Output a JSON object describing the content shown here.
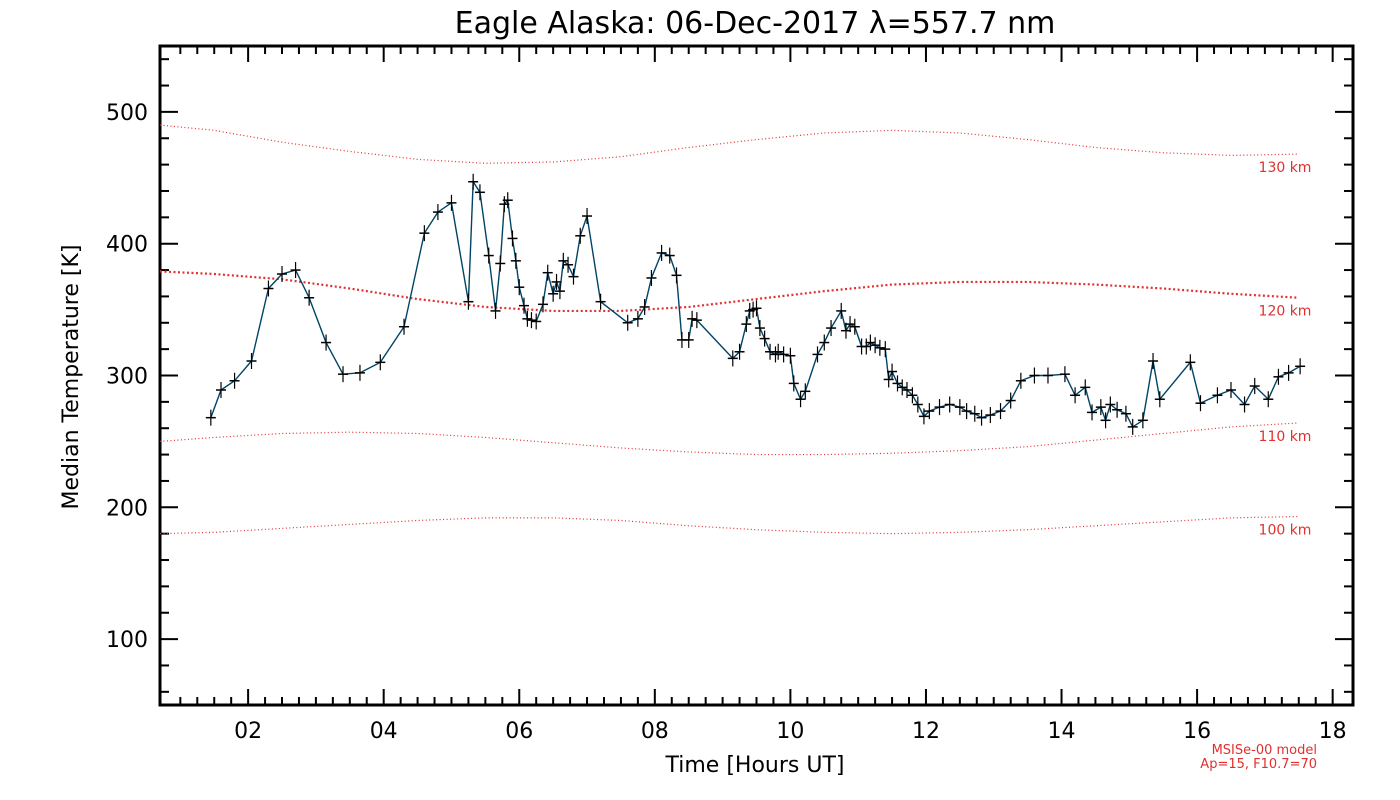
{
  "chart_data": {
    "type": "line",
    "title": "Eagle Alaska: 06-Dec-2017 λ=557.7 nm",
    "xlabel": "Time [Hours UT]",
    "ylabel": "Median Temperature [K]",
    "xlim": [
      0.7,
      18.3
    ],
    "ylim": [
      50,
      550
    ],
    "x_ticks": [
      2,
      4,
      6,
      8,
      10,
      12,
      14,
      16,
      18
    ],
    "x_tick_labels": [
      "02",
      "04",
      "06",
      "08",
      "10",
      "12",
      "14",
      "16",
      "18"
    ],
    "y_ticks": [
      100,
      200,
      300,
      400,
      500
    ],
    "y_tick_labels": [
      "100",
      "200",
      "300",
      "400",
      "500"
    ],
    "series": [
      {
        "color": "#004466",
        "marker": "plus",
        "x": [
          1.45,
          1.6,
          1.8,
          2.05,
          2.3,
          2.5,
          2.7,
          2.9,
          3.15,
          3.4,
          3.65,
          3.95,
          4.3,
          4.6,
          4.8,
          5.0,
          5.25,
          5.32,
          5.42,
          5.55,
          5.65,
          5.72,
          5.78,
          5.83,
          5.9,
          5.95,
          6.0,
          6.07,
          6.12,
          6.18,
          6.25,
          6.35,
          6.42,
          6.5,
          6.55,
          6.6,
          6.65,
          6.72,
          6.8,
          6.9,
          7.0,
          7.2,
          7.6,
          7.75,
          7.85,
          7.95,
          8.1,
          8.22,
          8.32,
          8.4,
          8.5,
          8.55,
          8.62,
          9.15,
          9.25,
          9.35,
          9.4,
          9.45,
          9.5,
          9.55,
          9.62,
          9.7,
          9.78,
          9.82,
          9.9,
          10.0,
          10.05,
          10.15,
          10.22,
          10.4,
          10.5,
          10.6,
          10.75,
          10.82,
          10.88,
          10.95,
          11.05,
          11.12,
          11.18,
          11.25,
          11.32,
          11.4,
          11.45,
          11.5,
          11.58,
          11.65,
          11.72,
          11.8,
          11.88,
          11.97,
          12.05,
          12.2,
          12.35,
          12.5,
          12.6,
          12.72,
          12.82,
          12.95,
          13.1,
          13.25,
          13.4,
          13.6,
          13.8,
          14.05,
          14.2,
          14.35,
          14.45,
          14.58,
          14.65,
          14.72,
          14.82,
          14.95,
          15.05,
          15.2,
          15.35,
          15.45,
          15.9,
          16.05,
          16.3,
          16.5,
          16.7,
          16.85,
          17.05,
          17.2,
          17.35,
          17.52
        ],
        "y": [
          268,
          289,
          296,
          311,
          366,
          377,
          380,
          359,
          325,
          301,
          302,
          310,
          337,
          408,
          424,
          431,
          356,
          447,
          439,
          391,
          349,
          385,
          430,
          433,
          404,
          387,
          367,
          353,
          343,
          342,
          341,
          354,
          378,
          362,
          371,
          364,
          387,
          384,
          375,
          406,
          421,
          356,
          340,
          343,
          352,
          374,
          393,
          391,
          376,
          327,
          327,
          343,
          342,
          313,
          318,
          339,
          349,
          350,
          351,
          336,
          328,
          318,
          316,
          318,
          316,
          315,
          294,
          282,
          288,
          316,
          325,
          336,
          349,
          334,
          339,
          337,
          322,
          322,
          325,
          323,
          321,
          320,
          297,
          303,
          294,
          291,
          289,
          285,
          278,
          269,
          273,
          276,
          278,
          276,
          273,
          271,
          268,
          270,
          273,
          281,
          296,
          300,
          300,
          301,
          285,
          291,
          272,
          276,
          266,
          278,
          274,
          271,
          261,
          266,
          311,
          282,
          310,
          279,
          285,
          289,
          278,
          292,
          282,
          299,
          302,
          307
        ]
      }
    ],
    "model_curves": [
      {
        "label": "130 km",
        "style": "dotted",
        "x": [
          0.7,
          1.5,
          2.5,
          3.5,
          4.5,
          5.5,
          6.5,
          7.5,
          8.5,
          9.5,
          10.5,
          11.5,
          12.5,
          13.5,
          14.5,
          15.5,
          16.5,
          17.5
        ],
        "y": [
          490,
          486,
          477,
          470,
          464,
          461,
          462,
          466,
          473,
          479,
          484,
          486,
          484,
          479,
          473,
          469,
          467,
          468
        ]
      },
      {
        "label": "120 km",
        "style": "dotted-thick",
        "x": [
          0.7,
          1.5,
          2.5,
          3.5,
          4.5,
          5.5,
          6.5,
          7.5,
          8.5,
          9.5,
          10.5,
          11.5,
          12.5,
          13.5,
          14.5,
          15.5,
          16.5,
          17.5
        ],
        "y": [
          379,
          377,
          373,
          366,
          358,
          352,
          349,
          349,
          352,
          358,
          364,
          369,
          371,
          371,
          369,
          366,
          362,
          359
        ]
      },
      {
        "label": "110 km",
        "style": "dotted",
        "x": [
          0.7,
          1.5,
          2.5,
          3.5,
          4.5,
          5.5,
          6.5,
          7.5,
          8.5,
          9.5,
          10.5,
          11.5,
          12.5,
          13.5,
          14.5,
          15.5,
          16.5,
          17.5
        ],
        "y": [
          250,
          253,
          256,
          257,
          256,
          253,
          249,
          245,
          242,
          240,
          240,
          241,
          243,
          246,
          251,
          256,
          261,
          264
        ]
      },
      {
        "label": "100 km",
        "style": "dotted",
        "x": [
          0.7,
          1.5,
          2.5,
          3.5,
          4.5,
          5.5,
          6.5,
          7.5,
          8.5,
          9.5,
          10.5,
          11.5,
          12.5,
          13.5,
          14.5,
          15.5,
          16.5,
          17.5
        ],
        "y": [
          180,
          181,
          184,
          187,
          190,
          192,
          192,
          190,
          186,
          183,
          181,
          180,
          181,
          183,
          186,
          189,
          192,
          193
        ]
      }
    ],
    "notes": [
      "MSISe-00 model",
      "Ap=15, F10.7=70"
    ],
    "colors": {
      "data": "#004466",
      "marker": "#000000",
      "model": "#e03030",
      "axes": "#000000"
    }
  }
}
